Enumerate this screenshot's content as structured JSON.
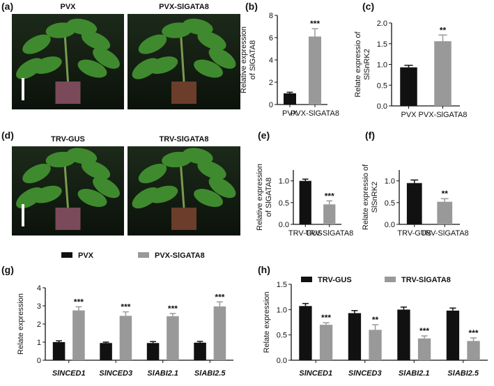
{
  "panel_labels": [
    "(a)",
    "(b)",
    "(c)",
    "(d)",
    "(e)",
    "(f)",
    "(g)",
    "(h)"
  ],
  "photos": [
    {
      "label": "PVX"
    },
    {
      "label": "PVX-SlGATA8"
    },
    {
      "label": "TRV-GUS"
    },
    {
      "label": "TRV-SlGATA8"
    }
  ],
  "chart_data": [
    {
      "type": "bar",
      "ylabel": [
        "Relative expression",
        "of SlGATA8"
      ],
      "categories": [
        "PVX",
        "PVX-SlGATA8"
      ],
      "values": [
        1.0,
        6.1
      ],
      "errors": [
        0.1,
        0.7
      ],
      "colors": [
        "#111111",
        "#999999"
      ],
      "annotations": [
        null,
        "***"
      ],
      "ylim": [
        0,
        8
      ],
      "yticks": [
        0,
        2,
        4,
        6,
        8
      ]
    },
    {
      "type": "bar",
      "ylabel": [
        "Relate expressio of",
        "SlSnRK2"
      ],
      "categories": [
        "PVX",
        "PVX-SlGATA8"
      ],
      "values": [
        0.93,
        1.56
      ],
      "errors": [
        0.05,
        0.15
      ],
      "colors": [
        "#111111",
        "#999999"
      ],
      "annotations": [
        null,
        "**"
      ],
      "ylim": [
        0,
        2.0
      ],
      "yticks": [
        {
          "value": 0,
          "label": "0.0"
        },
        {
          "value": 0.5,
          "label": "0.5"
        },
        {
          "value": 1,
          "label": "1.0"
        },
        {
          "value": 1.5,
          "label": "1.5"
        },
        {
          "value": 2,
          "label": "2.0"
        }
      ]
    },
    {
      "type": "bar",
      "ylabel": [
        "Relative expression",
        "of SlGATA8"
      ],
      "categories": [
        "TRV-GUS",
        "TRV-SlGATA8"
      ],
      "values": [
        1.0,
        0.46
      ],
      "errors": [
        0.04,
        0.08
      ],
      "colors": [
        "#111111",
        "#999999"
      ],
      "annotations": [
        null,
        "***"
      ],
      "ylim": [
        0,
        1.25
      ],
      "yticks": [
        {
          "value": 0,
          "label": "0.0"
        },
        0.5,
        {
          "value": 1,
          "label": "1.0"
        }
      ]
    },
    {
      "type": "bar",
      "ylabel": [
        "Relate expressio of",
        "SlSnRK2"
      ],
      "categories": [
        "TRV-GUS",
        "TRV-SlGATA8"
      ],
      "values": [
        0.95,
        0.52
      ],
      "errors": [
        0.07,
        0.07
      ],
      "colors": [
        "#111111",
        "#999999"
      ],
      "annotations": [
        null,
        "**"
      ],
      "ylim": [
        0,
        1.25
      ],
      "yticks": [
        {
          "value": 0,
          "label": "0.0"
        },
        0.5,
        {
          "value": 1,
          "label": "1.0"
        }
      ]
    },
    {
      "type": "grouped-bar",
      "ylabel": [
        "Relate expression"
      ],
      "categories": [
        "SlNCED1",
        "SlNCED3",
        "SlABI2.1",
        "SlABI2.5"
      ],
      "series": [
        {
          "name": "PVX",
          "color": "#111111",
          "values": [
            1.0,
            0.95,
            0.95,
            0.97
          ],
          "errors": [
            0.07,
            0.05,
            0.08,
            0.07
          ],
          "annotations": [
            null,
            null,
            null,
            null
          ]
        },
        {
          "name": "PVX-SlGATA8",
          "color": "#999999",
          "values": [
            2.75,
            2.45,
            2.43,
            2.97
          ],
          "errors": [
            0.2,
            0.22,
            0.15,
            0.25
          ],
          "annotations": [
            "***",
            "***",
            "***",
            "***"
          ]
        }
      ],
      "ylim": [
        0,
        4
      ],
      "yticks": [
        0,
        1,
        2,
        3,
        4
      ]
    },
    {
      "type": "grouped-bar",
      "ylabel": [
        "Relate expression"
      ],
      "categories": [
        "SlNCED1",
        "SlNCED3",
        "SlABI2.1",
        "SlABI2.5"
      ],
      "series": [
        {
          "name": "TRV-GUS",
          "color": "#111111",
          "values": [
            1.07,
            0.93,
            1.0,
            0.98
          ],
          "errors": [
            0.05,
            0.05,
            0.05,
            0.05
          ],
          "annotations": [
            null,
            null,
            null,
            null
          ]
        },
        {
          "name": "TRV-SlGATA8",
          "color": "#999999",
          "values": [
            0.7,
            0.6,
            0.43,
            0.38
          ],
          "errors": [
            0.04,
            0.1,
            0.05,
            0.06
          ],
          "annotations": [
            "***",
            "**",
            "***",
            "***"
          ]
        }
      ],
      "ylim": [
        0,
        1.5
      ],
      "yticks": [
        {
          "value": 0,
          "label": "0.0"
        },
        0.5,
        {
          "value": 1,
          "label": "1.0"
        },
        1.5
      ]
    }
  ]
}
